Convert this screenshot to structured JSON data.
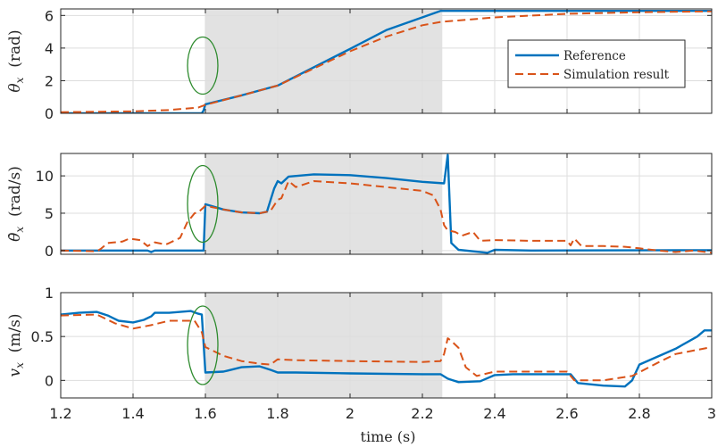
{
  "chart_data": {
    "type": "line",
    "xlabel": "time (s)",
    "xlim": [
      1.2,
      3.0
    ],
    "x_ticks": [
      "1.2",
      "1.4",
      "1.6",
      "1.8",
      "2",
      "2.2",
      "2.4",
      "2.6",
      "2.8",
      "3"
    ],
    "shaded_interval": [
      1.6,
      2.255
    ],
    "highlight_x": 1.6,
    "legend": {
      "placement": "right, inside top panel",
      "entries": [
        {
          "name": "Reference",
          "style": "solid",
          "color": "#0072BD"
        },
        {
          "name": "Simulation result",
          "style": "dashed",
          "color": "#D95319"
        }
      ]
    },
    "panels": [
      {
        "ylabel_symbol": "θ",
        "ylabel_subscript": "x",
        "ylabel_unit": "(rad)",
        "ylim": [
          0,
          6.4
        ],
        "y_ticks": [
          "0",
          "2",
          "4",
          "6"
        ],
        "y_tick_values": [
          0,
          2,
          4,
          6
        ],
        "grid": true,
        "series": [
          {
            "name": "Reference",
            "points": [
              [
                1.2,
                0
              ],
              [
                1.4,
                0
              ],
              [
                1.59,
                0
              ],
              [
                1.595,
                0.18
              ],
              [
                1.6,
                0.55
              ],
              [
                1.7,
                1.1
              ],
              [
                1.8,
                1.7
              ],
              [
                2.0,
                3.95
              ],
              [
                2.1,
                5.1
              ],
              [
                2.25,
                6.28
              ],
              [
                2.27,
                6.28
              ],
              [
                2.5,
                6.28
              ],
              [
                3.0,
                6.28
              ]
            ]
          },
          {
            "name": "Simulation result",
            "points": [
              [
                1.2,
                0.07
              ],
              [
                1.4,
                0.12
              ],
              [
                1.5,
                0.2
              ],
              [
                1.58,
                0.35
              ],
              [
                1.6,
                0.52
              ],
              [
                1.7,
                1.1
              ],
              [
                1.8,
                1.7
              ],
              [
                2.0,
                3.8
              ],
              [
                2.1,
                4.7
              ],
              [
                2.2,
                5.4
              ],
              [
                2.25,
                5.6
              ],
              [
                2.4,
                5.88
              ],
              [
                2.6,
                6.1
              ],
              [
                2.8,
                6.2
              ],
              [
                3.0,
                6.25
              ]
            ]
          }
        ]
      },
      {
        "ylabel_symbol": "θ",
        "ylabel_subscript": "x",
        "ylabel_unit": "(rad/s)",
        "ylabel_dot": true,
        "ylim": [
          -0.5,
          13
        ],
        "y_ticks": [
          "0",
          "5",
          "10"
        ],
        "y_tick_values": [
          0,
          5,
          10
        ],
        "grid": true,
        "series": [
          {
            "name": "Reference",
            "points": [
              [
                1.2,
                0
              ],
              [
                1.44,
                0
              ],
              [
                1.45,
                -0.2
              ],
              [
                1.46,
                0
              ],
              [
                1.59,
                0
              ],
              [
                1.595,
                0
              ],
              [
                1.6,
                6.2
              ],
              [
                1.65,
                5.5
              ],
              [
                1.7,
                5.1
              ],
              [
                1.75,
                5.0
              ],
              [
                1.77,
                5.2
              ],
              [
                1.79,
                8.3
              ],
              [
                1.8,
                9.3
              ],
              [
                1.81,
                9.0
              ],
              [
                1.83,
                9.9
              ],
              [
                1.9,
                10.2
              ],
              [
                2.0,
                10.1
              ],
              [
                2.1,
                9.7
              ],
              [
                2.2,
                9.2
              ],
              [
                2.26,
                9.0
              ],
              [
                2.27,
                12.8
              ],
              [
                2.28,
                1.0
              ],
              [
                2.3,
                0.1
              ],
              [
                2.38,
                -0.3
              ],
              [
                2.4,
                0.1
              ],
              [
                2.5,
                0
              ],
              [
                3.0,
                0.05
              ]
            ]
          },
          {
            "name": "Simulation result",
            "points": [
              [
                1.2,
                0
              ],
              [
                1.3,
                -0.1
              ],
              [
                1.31,
                0.2
              ],
              [
                1.33,
                1.0
              ],
              [
                1.37,
                1.2
              ],
              [
                1.39,
                1.6
              ],
              [
                1.42,
                1.4
              ],
              [
                1.44,
                0.6
              ],
              [
                1.46,
                1.1
              ],
              [
                1.49,
                0.8
              ],
              [
                1.5,
                1.0
              ],
              [
                1.53,
                1.7
              ],
              [
                1.55,
                3.8
              ],
              [
                1.57,
                5.0
              ],
              [
                1.58,
                5.1
              ],
              [
                1.6,
                6.0
              ],
              [
                1.65,
                5.5
              ],
              [
                1.7,
                5.1
              ],
              [
                1.75,
                5.0
              ],
              [
                1.78,
                5.3
              ],
              [
                1.8,
                6.8
              ],
              [
                1.81,
                7.0
              ],
              [
                1.83,
                9.3
              ],
              [
                1.85,
                8.5
              ],
              [
                1.9,
                9.3
              ],
              [
                2.0,
                9.0
              ],
              [
                2.1,
                8.5
              ],
              [
                2.2,
                8.0
              ],
              [
                2.23,
                7.4
              ],
              [
                2.25,
                5.5
              ],
              [
                2.26,
                3.4
              ],
              [
                2.27,
                2.7
              ],
              [
                2.29,
                2.5
              ],
              [
                2.31,
                2.0
              ],
              [
                2.34,
                2.5
              ],
              [
                2.36,
                1.3
              ],
              [
                2.4,
                1.4
              ],
              [
                2.5,
                1.3
              ],
              [
                2.6,
                1.3
              ],
              [
                2.61,
                0.7
              ],
              [
                2.62,
                1.6
              ],
              [
                2.64,
                0.6
              ],
              [
                2.7,
                0.6
              ],
              [
                2.76,
                0.5
              ],
              [
                2.8,
                0.3
              ],
              [
                2.85,
                0
              ],
              [
                2.9,
                -0.2
              ],
              [
                2.95,
                0
              ],
              [
                3.0,
                -0.3
              ]
            ]
          }
        ]
      },
      {
        "ylabel_symbol": "v",
        "ylabel_subscript": "x",
        "ylabel_unit": "(m/s)",
        "ylim": [
          -0.2,
          1.0
        ],
        "y_ticks": [
          "0",
          "0.5",
          "1"
        ],
        "y_tick_values": [
          0,
          0.5,
          1
        ],
        "grid": true,
        "series": [
          {
            "name": "Reference",
            "points": [
              [
                1.2,
                0.75
              ],
              [
                1.25,
                0.77
              ],
              [
                1.3,
                0.78
              ],
              [
                1.33,
                0.74
              ],
              [
                1.36,
                0.68
              ],
              [
                1.4,
                0.66
              ],
              [
                1.43,
                0.69
              ],
              [
                1.45,
                0.73
              ],
              [
                1.46,
                0.77
              ],
              [
                1.5,
                0.77
              ],
              [
                1.53,
                0.78
              ],
              [
                1.56,
                0.79
              ],
              [
                1.58,
                0.76
              ],
              [
                1.59,
                0.75
              ],
              [
                1.6,
                0.09
              ],
              [
                1.65,
                0.1
              ],
              [
                1.7,
                0.15
              ],
              [
                1.75,
                0.16
              ],
              [
                1.78,
                0.12
              ],
              [
                1.8,
                0.09
              ],
              [
                1.85,
                0.09
              ],
              [
                2.0,
                0.08
              ],
              [
                2.2,
                0.07
              ],
              [
                2.25,
                0.07
              ],
              [
                2.27,
                0.02
              ],
              [
                2.3,
                -0.02
              ],
              [
                2.36,
                -0.01
              ],
              [
                2.4,
                0.06
              ],
              [
                2.45,
                0.07
              ],
              [
                2.5,
                0.07
              ],
              [
                2.61,
                0.07
              ],
              [
                2.63,
                -0.03
              ],
              [
                2.7,
                -0.06
              ],
              [
                2.76,
                -0.07
              ],
              [
                2.78,
                0.0
              ],
              [
                2.8,
                0.18
              ],
              [
                2.9,
                0.36
              ],
              [
                2.96,
                0.5
              ],
              [
                2.98,
                0.57
              ],
              [
                3.0,
                0.57
              ]
            ]
          },
          {
            "name": "Simulation result",
            "points": [
              [
                1.2,
                0.74
              ],
              [
                1.3,
                0.75
              ],
              [
                1.35,
                0.65
              ],
              [
                1.4,
                0.59
              ],
              [
                1.45,
                0.63
              ],
              [
                1.5,
                0.68
              ],
              [
                1.57,
                0.68
              ],
              [
                1.59,
                0.55
              ],
              [
                1.6,
                0.38
              ],
              [
                1.65,
                0.28
              ],
              [
                1.7,
                0.22
              ],
              [
                1.75,
                0.19
              ],
              [
                1.78,
                0.18
              ],
              [
                1.8,
                0.24
              ],
              [
                1.85,
                0.23
              ],
              [
                2.0,
                0.22
              ],
              [
                2.2,
                0.21
              ],
              [
                2.25,
                0.22
              ],
              [
                2.26,
                0.3
              ],
              [
                2.27,
                0.48
              ],
              [
                2.28,
                0.45
              ],
              [
                2.3,
                0.37
              ],
              [
                2.32,
                0.15
              ],
              [
                2.35,
                0.05
              ],
              [
                2.4,
                0.1
              ],
              [
                2.5,
                0.1
              ],
              [
                2.6,
                0.1
              ],
              [
                2.62,
                0.0
              ],
              [
                2.7,
                0.0
              ],
              [
                2.78,
                0.05
              ],
              [
                2.85,
                0.2
              ],
              [
                2.9,
                0.3
              ],
              [
                3.0,
                0.38
              ]
            ]
          }
        ]
      }
    ]
  }
}
